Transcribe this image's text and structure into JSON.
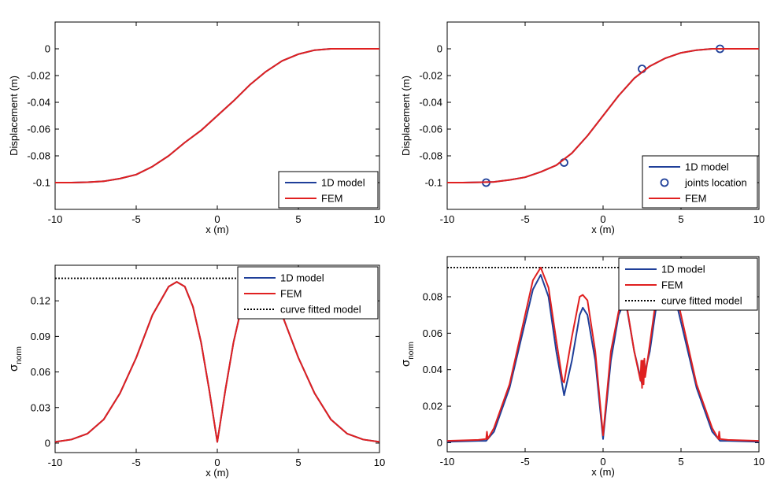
{
  "chart_data": [
    {
      "type": "line",
      "panel": "top-left",
      "title": "",
      "xlabel": "x (m)",
      "ylabel": "Displacement (m)",
      "xlim": [
        -10,
        10
      ],
      "ylim": [
        -0.12,
        0.02
      ],
      "xticks": [
        -10,
        -5,
        0,
        5,
        10
      ],
      "xtick_labels": [
        "-10",
        "-5",
        "0",
        "5",
        "10"
      ],
      "yticks": [
        -0.1,
        -0.08,
        -0.06,
        -0.04,
        -0.02,
        0
      ],
      "ytick_labels": [
        "-0.1",
        "-0.08",
        "-0.06",
        "-0.04",
        "-0.02",
        "0"
      ],
      "grid": false,
      "legend_position": "bottom-right",
      "series": [
        {
          "name": "1D model",
          "color": "#1f3f99",
          "style": "solid",
          "x": [
            -10,
            -9,
            -8,
            -7,
            -6,
            -5,
            -4,
            -3,
            -2,
            -1,
            0,
            1,
            2,
            3,
            4,
            5,
            6,
            7,
            8,
            9,
            10
          ],
          "y": [
            -0.1,
            -0.1,
            -0.0997,
            -0.099,
            -0.097,
            -0.094,
            -0.088,
            -0.08,
            -0.07,
            -0.061,
            -0.05,
            -0.039,
            -0.027,
            -0.017,
            -0.009,
            -0.004,
            -0.001,
            0,
            0,
            0,
            0
          ]
        },
        {
          "name": "FEM",
          "color": "#e02020",
          "style": "solid",
          "x": [
            -10,
            -9,
            -8,
            -7,
            -6,
            -5,
            -4,
            -3,
            -2,
            -1,
            0,
            1,
            2,
            3,
            4,
            5,
            6,
            7,
            8,
            9,
            10
          ],
          "y": [
            -0.1,
            -0.1,
            -0.0997,
            -0.099,
            -0.097,
            -0.094,
            -0.088,
            -0.08,
            -0.07,
            -0.061,
            -0.05,
            -0.039,
            -0.027,
            -0.017,
            -0.009,
            -0.004,
            -0.001,
            0,
            0,
            0,
            0
          ]
        }
      ]
    },
    {
      "type": "line",
      "panel": "top-right",
      "title": "",
      "xlabel": "x (m)",
      "ylabel": "Displacement (m)",
      "xlim": [
        -10,
        10
      ],
      "ylim": [
        -0.12,
        0.02
      ],
      "xticks": [
        -10,
        -5,
        0,
        5,
        10
      ],
      "xtick_labels": [
        "-10",
        "-5",
        "0",
        "5",
        "10"
      ],
      "yticks": [
        -0.1,
        -0.08,
        -0.06,
        -0.04,
        -0.02,
        0
      ],
      "ytick_labels": [
        "-0.1",
        "-0.08",
        "-0.06",
        "-0.04",
        "-0.02",
        "0"
      ],
      "grid": false,
      "legend_position": "bottom-right",
      "series": [
        {
          "name": "1D model",
          "color": "#1f3f99",
          "style": "solid",
          "x": [
            -10,
            -9,
            -8,
            -7,
            -6,
            -5,
            -4,
            -3,
            -2,
            -1,
            0,
            1,
            2,
            3,
            4,
            5,
            6,
            7,
            8,
            9,
            10
          ],
          "y": [
            -0.1,
            -0.1,
            -0.0998,
            -0.0995,
            -0.098,
            -0.096,
            -0.092,
            -0.087,
            -0.078,
            -0.065,
            -0.05,
            -0.035,
            -0.022,
            -0.013,
            -0.007,
            -0.003,
            -0.001,
            0,
            0,
            0,
            0
          ]
        },
        {
          "name": "joints location",
          "color": "#1f3f99",
          "style": "marker",
          "x": [
            -7.5,
            -2.5,
            2.5,
            7.5
          ],
          "y": [
            -0.1,
            -0.085,
            -0.015,
            0
          ]
        },
        {
          "name": "FEM",
          "color": "#e02020",
          "style": "solid",
          "x": [
            -10,
            -9,
            -8,
            -7,
            -6,
            -5,
            -4,
            -3,
            -2,
            -1,
            0,
            1,
            2,
            3,
            4,
            5,
            6,
            7,
            8,
            9,
            10
          ],
          "y": [
            -0.1,
            -0.1,
            -0.0998,
            -0.0995,
            -0.098,
            -0.096,
            -0.092,
            -0.087,
            -0.078,
            -0.065,
            -0.05,
            -0.035,
            -0.022,
            -0.013,
            -0.007,
            -0.003,
            -0.001,
            0,
            0,
            0,
            0
          ]
        }
      ]
    },
    {
      "type": "line",
      "panel": "bottom-left",
      "title": "",
      "xlabel": "x (m)",
      "ylabel": "σ",
      "ylabel_sub": "norm",
      "xlim": [
        -10,
        10
      ],
      "ylim": [
        -0.008,
        0.15
      ],
      "xticks": [
        -10,
        -5,
        0,
        5,
        10
      ],
      "xtick_labels": [
        "-10",
        "-5",
        "0",
        "5",
        "10"
      ],
      "yticks": [
        0,
        0.03,
        0.06,
        0.09,
        0.12
      ],
      "ytick_labels": [
        "0",
        "0.03",
        "0.06",
        "0.09",
        "0.12"
      ],
      "grid": false,
      "legend_position": "top-right",
      "series": [
        {
          "name": "1D model",
          "color": "#1f3f99",
          "style": "solid",
          "x": [
            -10,
            -9,
            -8,
            -7,
            -6,
            -5,
            -4,
            -3,
            -2.5,
            -2,
            -1.5,
            -1,
            -0.5,
            0,
            0.5,
            1,
            1.5,
            2,
            2.5,
            3,
            4,
            5,
            6,
            7,
            8,
            9,
            10
          ],
          "y": [
            0.001,
            0.003,
            0.008,
            0.02,
            0.042,
            0.072,
            0.108,
            0.132,
            0.136,
            0.132,
            0.115,
            0.085,
            0.045,
            0.001,
            0.045,
            0.085,
            0.115,
            0.132,
            0.136,
            0.132,
            0.108,
            0.072,
            0.042,
            0.02,
            0.008,
            0.003,
            0.001
          ]
        },
        {
          "name": "FEM",
          "color": "#e02020",
          "style": "solid",
          "x": [
            -10,
            -9,
            -8,
            -7,
            -6,
            -5,
            -4,
            -3,
            -2.5,
            -2,
            -1.5,
            -1,
            -0.5,
            0,
            0.5,
            1,
            1.5,
            2,
            2.5,
            3,
            4,
            5,
            6,
            7,
            8,
            9,
            10
          ],
          "y": [
            0.001,
            0.003,
            0.008,
            0.02,
            0.042,
            0.072,
            0.108,
            0.132,
            0.136,
            0.132,
            0.115,
            0.085,
            0.045,
            0.001,
            0.045,
            0.085,
            0.115,
            0.132,
            0.136,
            0.132,
            0.108,
            0.072,
            0.042,
            0.02,
            0.008,
            0.003,
            0.001
          ]
        },
        {
          "name": "curve fitted model",
          "color": "#000000",
          "style": "dotted",
          "x": [
            -10,
            10
          ],
          "y": [
            0.139,
            0.139
          ]
        }
      ]
    },
    {
      "type": "line",
      "panel": "bottom-right",
      "title": "",
      "xlabel": "x (m)",
      "ylabel": "σ",
      "ylabel_sub": "norm",
      "xlim": [
        -10,
        10
      ],
      "ylim": [
        -0.005,
        0.102
      ],
      "xticks": [
        -10,
        -5,
        0,
        5,
        10
      ],
      "xtick_labels": [
        "-10",
        "-5",
        "0",
        "5",
        "10"
      ],
      "yticks": [
        0,
        0.02,
        0.04,
        0.06,
        0.08
      ],
      "ytick_labels": [
        "0",
        "0.02",
        "0.04",
        "0.06",
        "0.08"
      ],
      "grid": false,
      "legend_position": "top-right",
      "series": [
        {
          "name": "1D model",
          "color": "#1f3f99",
          "style": "solid",
          "x": [
            -10,
            -8,
            -7.5,
            -7,
            -6,
            -5,
            -4.5,
            -4,
            -3.5,
            -3,
            -2.5,
            -2,
            -1.5,
            -1.3,
            -1,
            -0.5,
            0,
            0.5,
            1,
            1.3,
            1.5,
            2,
            2.5,
            3,
            3.5,
            4,
            4.5,
            5,
            6,
            7,
            7.5,
            8,
            10
          ],
          "y": [
            0.0005,
            0.001,
            0.001,
            0.006,
            0.03,
            0.066,
            0.084,
            0.092,
            0.08,
            0.05,
            0.026,
            0.045,
            0.07,
            0.074,
            0.07,
            0.045,
            0.002,
            0.045,
            0.07,
            0.076,
            0.075,
            0.05,
            0.032,
            0.05,
            0.08,
            0.092,
            0.084,
            0.066,
            0.03,
            0.006,
            0.001,
            0.001,
            0.0005
          ]
        },
        {
          "name": "FEM",
          "color": "#e02020",
          "style": "solid",
          "x": [
            -10,
            -8,
            -7.5,
            -7.45,
            -7.4,
            -7,
            -6,
            -5,
            -4.5,
            -4,
            -3.5,
            -3,
            -2.6,
            -2.5,
            -2,
            -1.5,
            -1.3,
            -1,
            -0.5,
            0,
            0.5,
            1,
            1.3,
            1.5,
            2,
            2.4,
            2.45,
            2.5,
            2.55,
            2.6,
            2.65,
            2.7,
            3,
            3.5,
            4,
            4.5,
            5,
            6,
            7,
            7.4,
            7.45,
            7.5,
            8,
            10
          ],
          "y": [
            0.001,
            0.0015,
            0.002,
            0.006,
            0.002,
            0.008,
            0.032,
            0.07,
            0.089,
            0.096,
            0.085,
            0.056,
            0.034,
            0.033,
            0.058,
            0.08,
            0.081,
            0.078,
            0.05,
            0.004,
            0.05,
            0.072,
            0.078,
            0.076,
            0.05,
            0.034,
            0.045,
            0.03,
            0.045,
            0.032,
            0.046,
            0.036,
            0.054,
            0.085,
            0.096,
            0.089,
            0.07,
            0.032,
            0.008,
            0.002,
            0.006,
            0.002,
            0.0015,
            0.001
          ]
        },
        {
          "name": "curve fitted model",
          "color": "#000000",
          "style": "dotted",
          "x": [
            -10,
            10
          ],
          "y": [
            0.096,
            0.096
          ]
        }
      ]
    }
  ]
}
